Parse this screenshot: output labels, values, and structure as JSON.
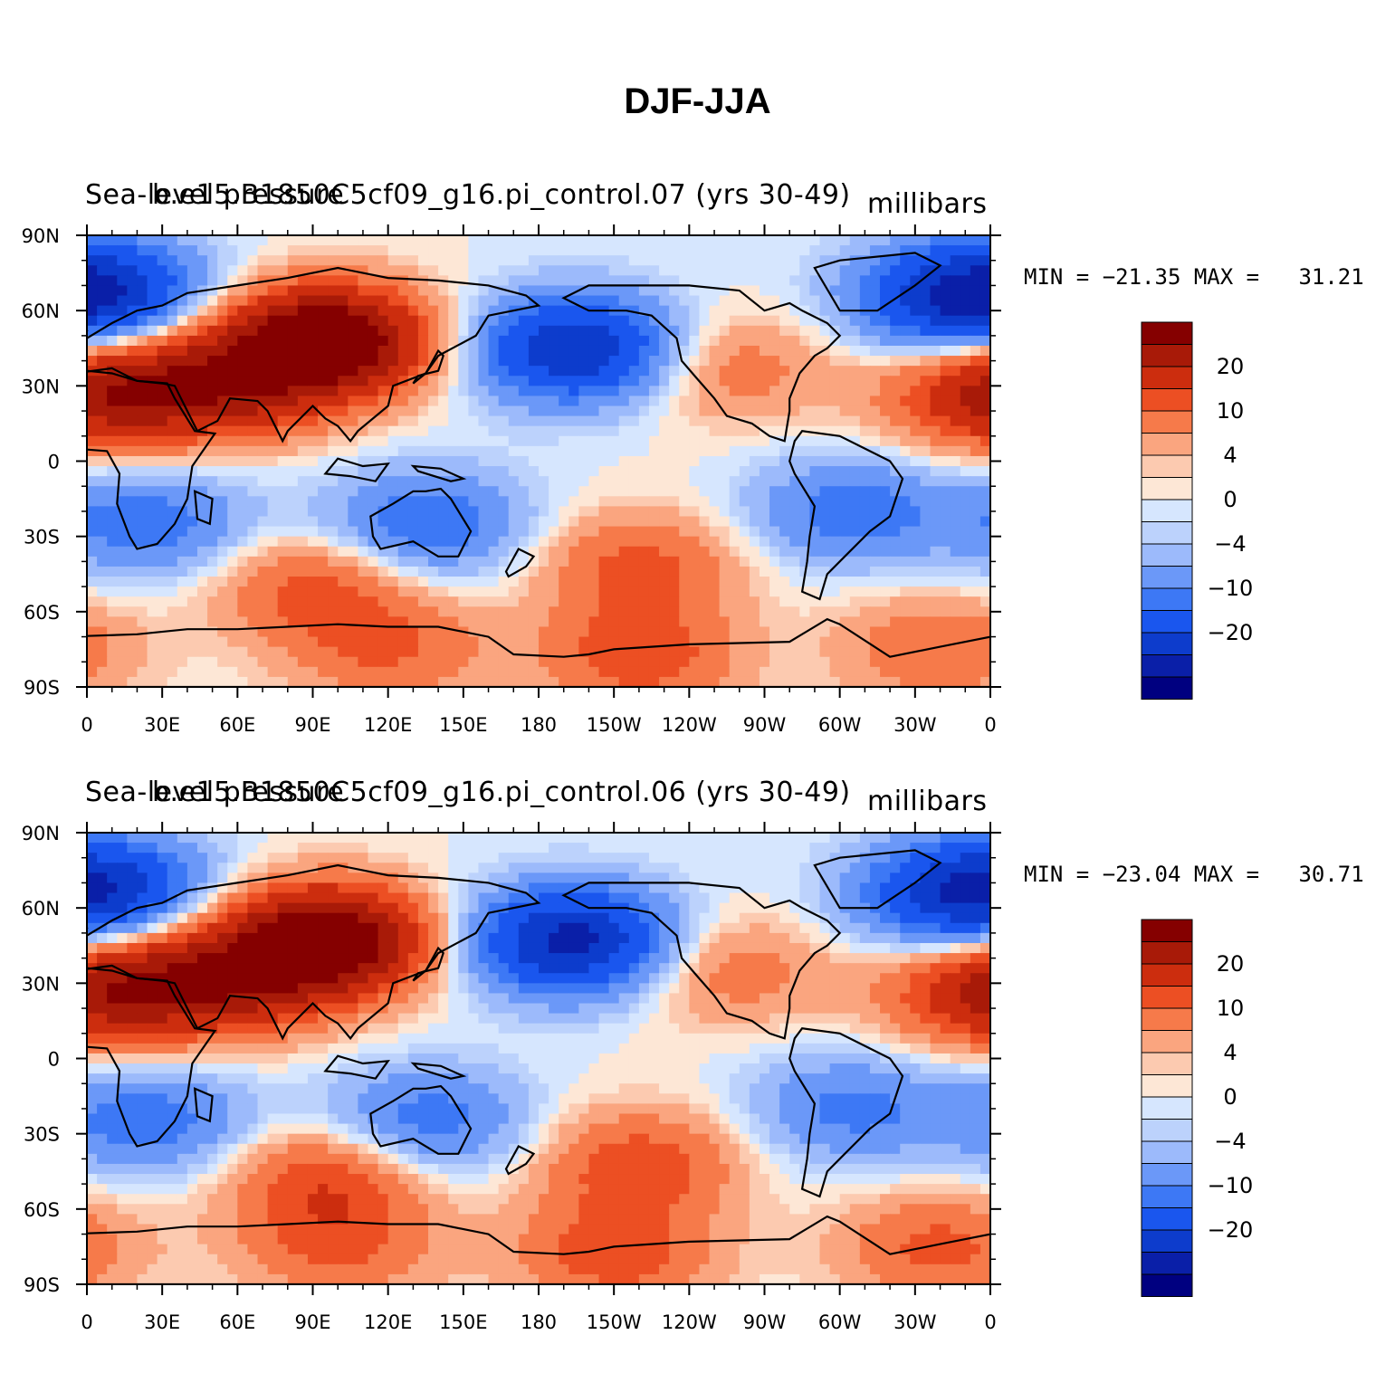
{
  "title": "DJF-JJA",
  "colors": {
    "levels": [
      "#000080",
      "#0a1fa8",
      "#0d3ccc",
      "#1a56ee",
      "#3d78f5",
      "#6b98f8",
      "#9cbafb",
      "#bcd2fc",
      "#d6e6fe",
      "#fde7d6",
      "#fccab0",
      "#faa57f",
      "#f67a4a",
      "#ec4f23",
      "#cc2d0e",
      "#a81a08",
      "#850000"
    ],
    "land_outline": "#000000"
  },
  "colorbar": {
    "labels": [
      "20",
      "10",
      "4",
      "0",
      "−4",
      "−10",
      "−20"
    ]
  },
  "axes": {
    "y_ticks": [
      "90N",
      "60N",
      "30N",
      "0",
      "30S",
      "60S",
      "90S"
    ],
    "x_ticks": [
      "0",
      "30E",
      "60E",
      "90E",
      "120E",
      "150E",
      "180",
      "150W",
      "120W",
      "90W",
      "60W",
      "30W",
      "0"
    ]
  },
  "chart_data": [
    {
      "type": "heatmap",
      "title_left": "Sea-level pressure",
      "title_main": "b.e15.B1850C5cf09_g16.pi_control.07 (yrs 30-49)",
      "units": "millibars",
      "min_label": "MIN = −21.35",
      "max_label": "MAX =   31.21",
      "min": -21.35,
      "max": 31.21,
      "x_range": [
        0,
        360
      ],
      "y_range": [
        -90,
        90
      ],
      "features": [
        {
          "lon": 95,
          "lat": 48,
          "value": 28
        },
        {
          "lon": 55,
          "lat": 30,
          "value": 14
        },
        {
          "lon": 15,
          "lat": 30,
          "value": 10
        },
        {
          "lon": 195,
          "lat": 45,
          "value": -20
        },
        {
          "lon": 345,
          "lat": 65,
          "value": -16
        },
        {
          "lon": 10,
          "lat": 68,
          "value": -12
        },
        {
          "lon": 25,
          "lat": -25,
          "value": -9
        },
        {
          "lon": 135,
          "lat": -25,
          "value": -10
        },
        {
          "lon": 305,
          "lat": -20,
          "value": -9
        },
        {
          "lon": 255,
          "lat": 37,
          "value": 6
        },
        {
          "lon": 355,
          "lat": 25,
          "value": 9
        },
        {
          "lon": 90,
          "lat": -50,
          "value": 8
        },
        {
          "lon": 220,
          "lat": -42,
          "value": 8
        },
        {
          "lon": 220,
          "lat": -78,
          "value": 9
        },
        {
          "lon": 120,
          "lat": -75,
          "value": 7
        },
        {
          "lon": 340,
          "lat": -75,
          "value": 7
        }
      ]
    },
    {
      "type": "heatmap",
      "title_left": "Sea-level pressure",
      "title_main": "b.e15.B1850C5cf09_g16.pi_control.06 (yrs 30-49)",
      "units": "millibars",
      "min_label": "MIN = −23.04",
      "max_label": "MAX =   30.71",
      "min": -23.04,
      "max": 30.71,
      "x_range": [
        0,
        360
      ],
      "y_range": [
        -90,
        90
      ],
      "features": [
        {
          "lon": 95,
          "lat": 47,
          "value": 27
        },
        {
          "lon": 55,
          "lat": 30,
          "value": 14
        },
        {
          "lon": 15,
          "lat": 30,
          "value": 10
        },
        {
          "lon": 193,
          "lat": 47,
          "value": -22
        },
        {
          "lon": 345,
          "lat": 65,
          "value": -14
        },
        {
          "lon": 10,
          "lat": 68,
          "value": -12
        },
        {
          "lon": 25,
          "lat": -25,
          "value": -9
        },
        {
          "lon": 135,
          "lat": -25,
          "value": -9
        },
        {
          "lon": 305,
          "lat": -20,
          "value": -8
        },
        {
          "lon": 255,
          "lat": 35,
          "value": 6
        },
        {
          "lon": 355,
          "lat": 25,
          "value": 9
        },
        {
          "lon": 95,
          "lat": -48,
          "value": 9
        },
        {
          "lon": 220,
          "lat": -42,
          "value": 9
        },
        {
          "lon": 210,
          "lat": -78,
          "value": 9
        },
        {
          "lon": 100,
          "lat": -75,
          "value": 7
        },
        {
          "lon": 340,
          "lat": -75,
          "value": 8
        }
      ]
    }
  ]
}
